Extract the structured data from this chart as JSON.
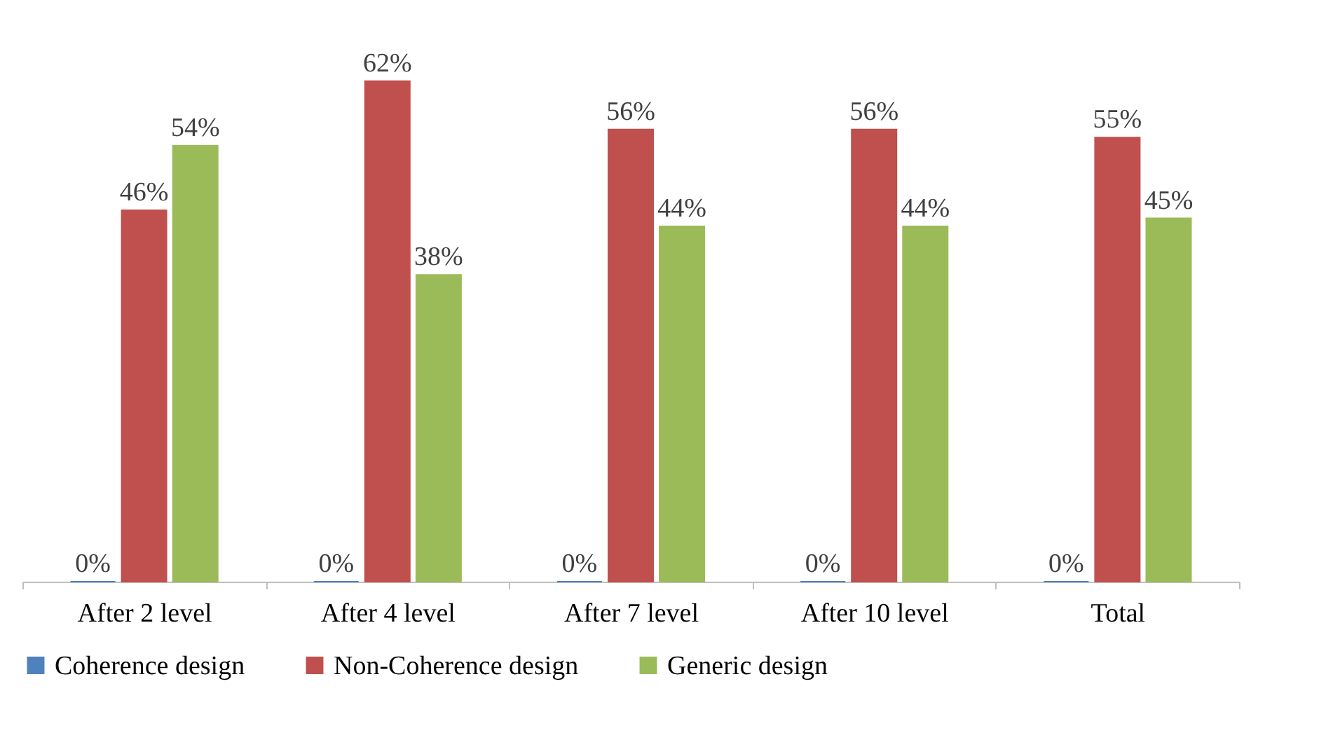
{
  "chart_data": {
    "type": "bar",
    "categories": [
      "After 2 level",
      "After 4 level",
      "After 7 level",
      "After 10 level",
      "Total"
    ],
    "series": [
      {
        "name": "Coherence design",
        "color": "#4f81bd",
        "values": [
          0,
          0,
          0,
          0,
          0
        ],
        "value_labels": [
          "0%",
          "0%",
          "0%",
          "0%",
          "0%"
        ]
      },
      {
        "name": "Non-Coherence design",
        "color": "#c0504d",
        "values": [
          46,
          62,
          56,
          56,
          55
        ],
        "value_labels": [
          "46%",
          "62%",
          "56%",
          "56%",
          "55%"
        ]
      },
      {
        "name": "Generic design",
        "color": "#9bbb59",
        "values": [
          54,
          38,
          44,
          44,
          45
        ],
        "value_labels": [
          "54%",
          "38%",
          "44%",
          "44%",
          "45%"
        ]
      }
    ],
    "legend": "bottom",
    "grid": false
  }
}
